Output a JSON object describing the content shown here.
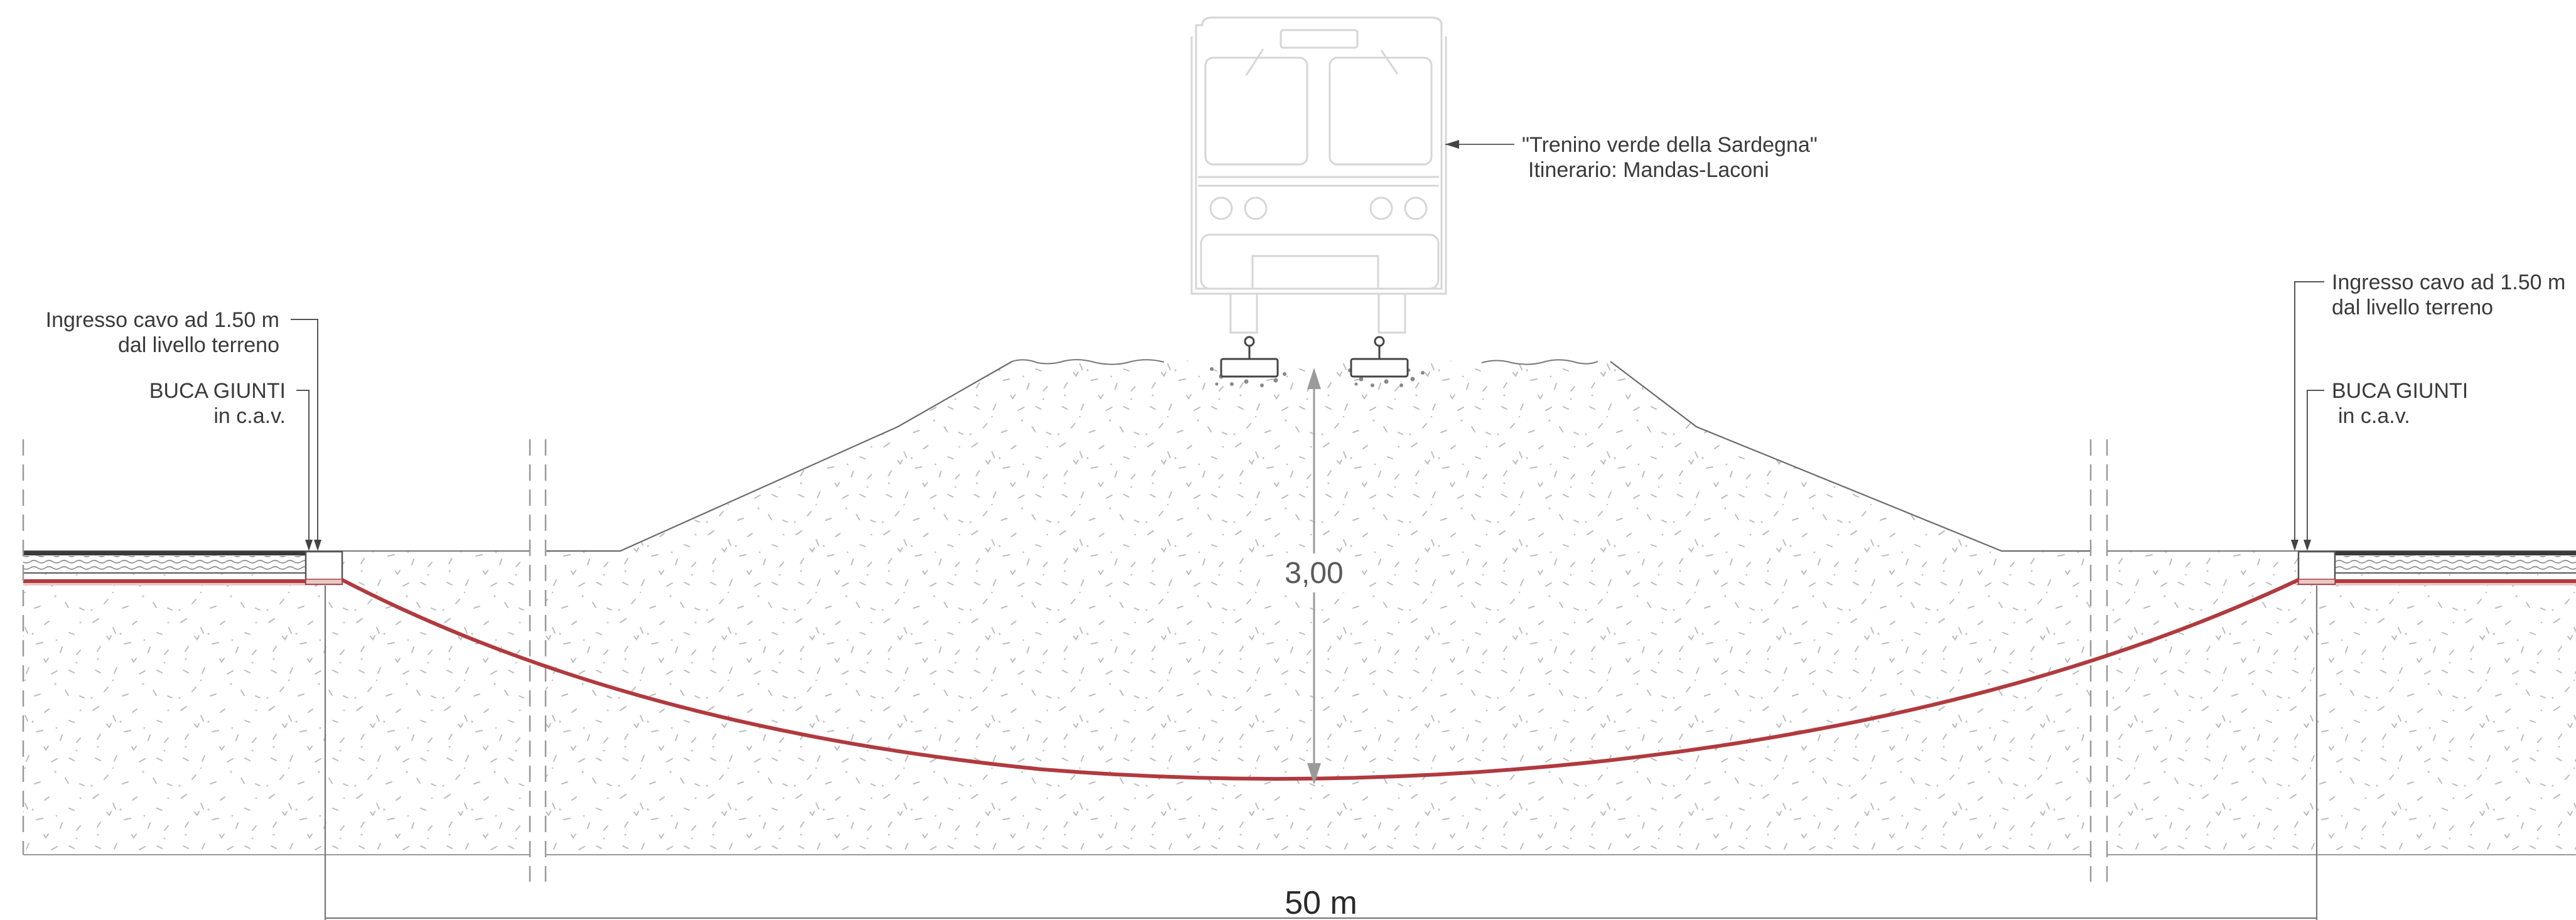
{
  "train_label": {
    "line1": "\"Trenino verde della Sardegna\"",
    "line2": "Itinerario: Mandas-Laconi"
  },
  "left_labels": {
    "entry_line1": "Ingresso cavo ad 1.50 m",
    "entry_line2": "dal livello terreno",
    "pit_line1": "BUCA GIUNTI",
    "pit_line2": "in c.a.v."
  },
  "right_labels": {
    "entry_line1": "Ingresso cavo ad 1.50 m",
    "entry_line2": "dal livello terreno",
    "pit_line1": "BUCA GIUNTI",
    "pit_line2": "in c.a.v."
  },
  "depth_dimension": "3,00",
  "span_dimension": "50 m",
  "icons": [
    "train-outline-icon",
    "rail-ballast-icon",
    "junction-pit-icon",
    "cable-route"
  ],
  "colors": {
    "cable": "#b03a3e",
    "line": "#555555",
    "soil_speckle": "#b8b8b8",
    "dimension": "#9a9a9a"
  }
}
